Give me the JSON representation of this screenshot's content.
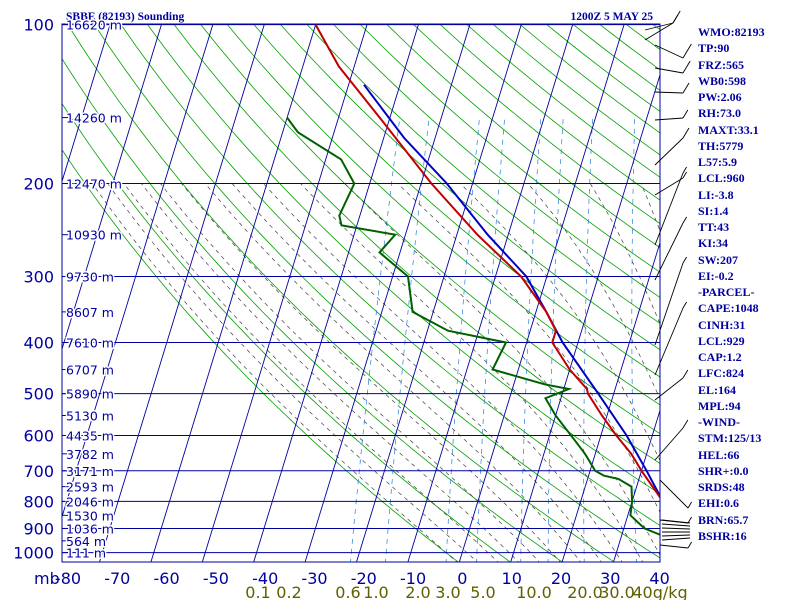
{
  "header": {
    "station": "SBBE (82193) Sounding",
    "time": "1200Z  5 MAY 25"
  },
  "chart_data": {
    "type": "skew-t",
    "pressure_levels": [
      100,
      200,
      300,
      400,
      500,
      600,
      700,
      800,
      900,
      1000
    ],
    "height_labels": [
      {
        "p": 100,
        "h": "16620 m"
      },
      {
        "p": 150,
        "h": "14260 m"
      },
      {
        "p": 200,
        "h": "12470 m"
      },
      {
        "p": 250,
        "h": "10930 m"
      },
      {
        "p": 300,
        "h": "9730 m"
      },
      {
        "p": 350,
        "h": "8607 m"
      },
      {
        "p": 400,
        "h": "7610 m"
      },
      {
        "p": 450,
        "h": "6707 m"
      },
      {
        "p": 500,
        "h": "5890 m"
      },
      {
        "p": 550,
        "h": "5130 m"
      },
      {
        "p": 600,
        "h": "4435 m"
      },
      {
        "p": 650,
        "h": "3782 m"
      },
      {
        "p": 700,
        "h": "3171 m"
      },
      {
        "p": 750,
        "h": "2593 m"
      },
      {
        "p": 800,
        "h": "2046 m"
      },
      {
        "p": 850,
        "h": "1530 m"
      },
      {
        "p": 900,
        "h": "1036 m"
      },
      {
        "p": 950,
        "h": "564 m"
      },
      {
        "p": 1000,
        "h": "111 m"
      }
    ],
    "temperature_ticks": [
      "-80",
      "-70",
      "-60",
      "-50",
      "-40",
      "-30",
      "-20",
      "-10",
      "0",
      "10",
      "20",
      "30",
      "40"
    ],
    "mixing_ratio_labels": [
      "0.1",
      "0.2",
      "0.6",
      "1.0",
      "2.0",
      "3.0",
      "5.0",
      "10.0",
      "20.0",
      "30.0",
      "40g/kg"
    ],
    "y_axis_unit": "mb",
    "temperature_profile": [
      {
        "p": 1000,
        "t": 28
      },
      {
        "p": 970,
        "t": 25
      },
      {
        "p": 925,
        "t": 22.5
      },
      {
        "p": 880,
        "t": 21
      },
      {
        "p": 850,
        "t": 19
      },
      {
        "p": 800,
        "t": 16
      },
      {
        "p": 700,
        "t": 10
      },
      {
        "p": 650,
        "t": 7
      },
      {
        "p": 600,
        "t": 3
      },
      {
        "p": 550,
        "t": -1
      },
      {
        "p": 500,
        "t": -5
      },
      {
        "p": 490,
        "t": -5.5
      },
      {
        "p": 450,
        "t": -10
      },
      {
        "p": 400,
        "t": -15
      },
      {
        "p": 380,
        "t": -15
      },
      {
        "p": 350,
        "t": -18
      },
      {
        "p": 300,
        "t": -25
      },
      {
        "p": 250,
        "t": -36
      },
      {
        "p": 200,
        "t": -48
      },
      {
        "p": 150,
        "t": -62
      },
      {
        "p": 120,
        "t": -73
      },
      {
        "p": 100,
        "t": -80
      }
    ],
    "dewpoint_profile": [
      {
        "p": 1000,
        "t": 24
      },
      {
        "p": 960,
        "t": 22
      },
      {
        "p": 900,
        "t": 14
      },
      {
        "p": 850,
        "t": 10.5
      },
      {
        "p": 800,
        "t": 10
      },
      {
        "p": 750,
        "t": 9
      },
      {
        "p": 725,
        "t": 6
      },
      {
        "p": 715,
        "t": 3
      },
      {
        "p": 700,
        "t": 1
      },
      {
        "p": 650,
        "t": -2
      },
      {
        "p": 610,
        "t": -5
      },
      {
        "p": 550,
        "t": -10
      },
      {
        "p": 510,
        "t": -13
      },
      {
        "p": 490,
        "t": -9
      },
      {
        "p": 480,
        "t": -14
      },
      {
        "p": 450,
        "t": -25
      },
      {
        "p": 400,
        "t": -24
      },
      {
        "p": 380,
        "t": -36
      },
      {
        "p": 350,
        "t": -44
      },
      {
        "p": 300,
        "t": -47
      },
      {
        "p": 270,
        "t": -54
      },
      {
        "p": 250,
        "t": -52
      },
      {
        "p": 240,
        "t": -63
      },
      {
        "p": 230,
        "t": -64
      },
      {
        "p": 200,
        "t": -63
      },
      {
        "p": 180,
        "t": -67
      },
      {
        "p": 160,
        "t": -77
      },
      {
        "p": 150,
        "t": -80
      }
    ],
    "parcel_profile": [
      {
        "p": 1000,
        "t": 28.5
      },
      {
        "p": 960,
        "t": 24.5
      },
      {
        "p": 929,
        "t": 21.5
      },
      {
        "p": 850,
        "t": 18
      },
      {
        "p": 800,
        "t": 16
      },
      {
        "p": 700,
        "t": 11
      },
      {
        "p": 600,
        "t": 5
      },
      {
        "p": 500,
        "t": -3
      },
      {
        "p": 400,
        "t": -13
      },
      {
        "p": 350,
        "t": -18
      },
      {
        "p": 300,
        "t": -24
      },
      {
        "p": 250,
        "t": -34
      },
      {
        "p": 200,
        "t": -45
      },
      {
        "p": 164,
        "t": -56
      },
      {
        "p": 130,
        "t": -67
      }
    ],
    "colors": {
      "isobar": "#0000a0",
      "isotherm": "#0000a0",
      "dry_adiabat": "#00a000",
      "moist_adiabat": "#404040",
      "mixing_ratio": "#2080e0",
      "temperature": "#c00000",
      "dewpoint": "#006000",
      "parcel": "#0000c0",
      "axis_text": "#0000a0",
      "mixing_text": "#606000"
    }
  },
  "indices": [
    "WMO:82193",
    "TP:90",
    "FRZ:565",
    "WB0:598",
    "PW:2.06",
    "RH:73.0",
    "MAXT:33.1",
    "TH:5779",
    "L57:5.9",
    "LCL:960",
    "LI:-3.8",
    "SI:1.4",
    "TT:43",
    "KI:34",
    "SW:207",
    "EI:-0.2",
    "-PARCEL-",
    "CAPE:1048",
    "CINH:31",
    "LCL:929",
    "CAP:1.2",
    "LFC:824",
    "EL:164",
    "MPL:94",
    "-WIND-",
    "STM:125/13",
    "HEL:66",
    "SHR+:0.0",
    "SRDS:48",
    "EHI:0.6",
    "BRN:65.7",
    "BSHR:16"
  ]
}
